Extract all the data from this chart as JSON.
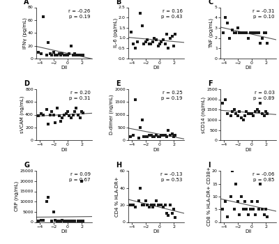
{
  "panels": [
    {
      "label": "A",
      "ylabel": "IFNγ (pg/mL)",
      "xlabel": "DII",
      "r": -0.26,
      "p": 0.19,
      "xlim": [
        -4.5,
        3.5
      ],
      "ylim": [
        0,
        80
      ],
      "yticks": [
        0,
        20,
        40,
        60,
        80
      ],
      "x": [
        -4.2,
        -3.8,
        -3.5,
        -3.0,
        -2.8,
        -2.5,
        -2.3,
        -2.0,
        -1.8,
        -1.5,
        -1.2,
        -1.0,
        -0.8,
        -0.5,
        -0.2,
        0.0,
        0.2,
        0.5,
        0.8,
        1.0,
        1.2,
        1.5,
        1.8,
        2.0,
        2.2
      ],
      "y": [
        10,
        8,
        65,
        5,
        25,
        8,
        5,
        10,
        5,
        5,
        8,
        5,
        7,
        5,
        5,
        5,
        8,
        20,
        5,
        8,
        5,
        5,
        5,
        5,
        5
      ]
    },
    {
      "label": "B",
      "ylabel": "IL-6 (pg/mL)",
      "xlabel": "DII",
      "r": 0.16,
      "p": 0.43,
      "xlim": [
        -4.5,
        3.5
      ],
      "ylim": [
        0.0,
        2.5
      ],
      "yticks": [
        0.0,
        0.5,
        1.0,
        1.5,
        2.0,
        2.5
      ],
      "x": [
        -4.1,
        -3.8,
        -3.5,
        -3.2,
        -2.8,
        -2.5,
        -2.3,
        -2.0,
        -1.8,
        -1.5,
        -1.3,
        -1.0,
        -0.8,
        -0.5,
        -0.2,
        0.0,
        0.2,
        0.5,
        0.8,
        1.0,
        1.2,
        1.5,
        1.8,
        2.0,
        2.2
      ],
      "y": [
        1.3,
        0.7,
        0.5,
        0.8,
        2.2,
        1.6,
        0.7,
        0.8,
        0.9,
        0.7,
        0.7,
        0.8,
        1.0,
        0.9,
        0.6,
        0.7,
        0.8,
        0.9,
        0.7,
        1.2,
        0.5,
        1.0,
        1.1,
        0.6,
        1.2
      ]
    },
    {
      "label": "C",
      "ylabel": "TNF (pg/mL)",
      "xlabel": "DII",
      "r": -0.31,
      "p": 0.1,
      "xlim": [
        -4.5,
        3.5
      ],
      "ylim": [
        0,
        5
      ],
      "yticks": [
        0,
        1,
        2,
        3,
        4,
        5
      ],
      "x": [
        -4.1,
        -3.8,
        -3.5,
        -3.2,
        -2.8,
        -2.5,
        -2.3,
        -2.0,
        -1.8,
        -1.5,
        -1.3,
        -1.0,
        -0.8,
        -0.5,
        -0.2,
        0.0,
        0.2,
        0.5,
        0.8,
        1.0,
        1.2,
        1.5,
        1.8,
        2.0,
        2.2
      ],
      "y": [
        2.5,
        4.0,
        3.5,
        2.0,
        2.8,
        2.5,
        2.5,
        3.0,
        2.5,
        2.5,
        2.5,
        2.5,
        2.5,
        2.0,
        2.5,
        2.5,
        2.5,
        2.5,
        2.5,
        2.5,
        1.5,
        2.0,
        2.5,
        2.5,
        1.5
      ]
    },
    {
      "label": "D",
      "ylabel": "sVCAM (ng/mL)",
      "xlabel": "DII",
      "r": 0.2,
      "p": 0.31,
      "xlim": [
        -4.5,
        3.5
      ],
      "ylim": [
        0,
        800
      ],
      "yticks": [
        0,
        200,
        400,
        600,
        800
      ],
      "x": [
        -4.2,
        -3.8,
        -3.5,
        -3.0,
        -2.8,
        -2.5,
        -2.3,
        -2.0,
        -1.8,
        -1.5,
        -1.2,
        -1.0,
        -0.8,
        -0.5,
        -0.2,
        0.0,
        0.2,
        0.5,
        0.8,
        1.0,
        1.2,
        1.5,
        1.8,
        2.0,
        2.2
      ],
      "y": [
        380,
        420,
        400,
        480,
        250,
        400,
        450,
        400,
        280,
        500,
        380,
        300,
        350,
        400,
        420,
        450,
        380,
        350,
        400,
        450,
        500,
        400,
        350,
        450,
        430
      ]
    },
    {
      "label": "E",
      "ylabel": "D-dimer (ng/mL)",
      "xlabel": "DII",
      "r": 0.25,
      "p": 0.19,
      "xlim": [
        -4.5,
        3.5
      ],
      "ylim": [
        0,
        2000
      ],
      "yticks": [
        0,
        500,
        1000,
        1500,
        2000
      ],
      "x": [
        -4.2,
        -3.8,
        -3.5,
        -3.0,
        -2.8,
        -2.5,
        -2.3,
        -2.0,
        -1.8,
        -1.5,
        -1.2,
        -1.0,
        -0.8,
        -0.5,
        -0.2,
        0.0,
        0.2,
        0.5,
        0.8,
        1.0,
        1.2,
        1.5,
        1.8,
        2.0,
        2.2
      ],
      "y": [
        150,
        200,
        1600,
        100,
        500,
        800,
        150,
        150,
        150,
        200,
        200,
        150,
        150,
        200,
        150,
        150,
        200,
        200,
        200,
        150,
        400,
        200,
        250,
        150,
        200
      ]
    },
    {
      "label": "F",
      "ylabel": "sCD14 (ng/mL)",
      "xlabel": "DII",
      "r": 0.03,
      "p": 0.89,
      "xlim": [
        -4.5,
        3.5
      ],
      "ylim": [
        0,
        2500
      ],
      "yticks": [
        0,
        500,
        1000,
        1500,
        2000,
        2500
      ],
      "x": [
        -4.2,
        -3.8,
        -3.5,
        -3.0,
        -2.8,
        -2.5,
        -2.3,
        -2.0,
        -1.8,
        -1.5,
        -1.2,
        -1.0,
        -0.8,
        -0.5,
        -0.2,
        0.0,
        0.2,
        0.5,
        0.8,
        1.0,
        1.2,
        1.5,
        1.8,
        2.0,
        2.2
      ],
      "y": [
        1800,
        2000,
        1300,
        1200,
        1400,
        1500,
        1300,
        1200,
        1400,
        1100,
        1000,
        1200,
        1400,
        1300,
        1300,
        1300,
        1200,
        1400,
        1500,
        1400,
        1800,
        1300,
        1200,
        1400,
        1300
      ]
    },
    {
      "label": "G",
      "ylabel": "CRP (ng/mL)",
      "xlabel": "DII",
      "r": 0.09,
      "p": 0.67,
      "xlim": [
        -4.5,
        3.5
      ],
      "ylim": [
        0,
        25000
      ],
      "yticks": [
        0,
        5000,
        10000,
        15000,
        20000,
        25000
      ],
      "x": [
        -4.2,
        -3.8,
        -3.5,
        -3.0,
        -2.8,
        -2.3,
        -2.0,
        -1.8,
        -1.5,
        -1.2,
        -1.0,
        -0.8,
        -0.5,
        -0.2,
        0.0,
        0.2,
        0.5,
        0.8,
        1.0,
        1.5,
        1.8,
        2.0,
        2.2
      ],
      "y": [
        500,
        800,
        1000,
        10000,
        12000,
        500,
        5000,
        800,
        500,
        500,
        500,
        1000,
        500,
        500,
        500,
        500,
        500,
        500,
        500,
        500,
        500,
        20000,
        500
      ]
    },
    {
      "label": "H",
      "ylabel": "CD4 % HLA-DR+",
      "xlabel": "DII",
      "r": -0.13,
      "p": 0.53,
      "xlim": [
        -4.5,
        3.5
      ],
      "ylim": [
        0,
        60
      ],
      "yticks": [
        0,
        20,
        40,
        60
      ],
      "x": [
        -4.2,
        -3.8,
        -3.5,
        -3.0,
        -2.8,
        -2.5,
        -2.3,
        -2.0,
        -1.8,
        -1.5,
        -1.2,
        -1.0,
        -0.8,
        -0.5,
        -0.2,
        0.0,
        0.2,
        0.5,
        0.8,
        1.0,
        1.2,
        1.5,
        1.8,
        2.0,
        2.2
      ],
      "y": [
        20,
        20,
        18,
        25,
        40,
        20,
        20,
        25,
        20,
        18,
        20,
        18,
        20,
        25,
        20,
        20,
        20,
        18,
        20,
        10,
        8,
        20,
        10,
        15,
        5
      ]
    },
    {
      "label": "I",
      "ylabel": "CD8 % HLA-DR+ CD38+",
      "xlabel": "DII",
      "r": -0.06,
      "p": 0.85,
      "xlim": [
        -4.5,
        3.5
      ],
      "ylim": [
        0,
        20
      ],
      "yticks": [
        0,
        5,
        10,
        15,
        20
      ],
      "x": [
        -4.2,
        -3.8,
        -3.5,
        -3.0,
        -2.8,
        -2.5,
        -2.3,
        -2.0,
        -1.8,
        -1.5,
        -1.2,
        -1.0,
        -0.8,
        -0.5,
        -0.2,
        0.0,
        0.2,
        0.5,
        0.8,
        1.0,
        1.2,
        1.5,
        1.8,
        2.0,
        2.2
      ],
      "y": [
        5,
        8,
        2,
        10,
        20,
        5,
        15,
        8,
        3,
        10,
        5,
        8,
        5,
        3,
        5,
        8,
        5,
        3,
        8,
        5,
        15,
        5,
        3,
        5,
        2
      ]
    }
  ],
  "marker_color": "#1a1a1a",
  "line_color": "#555555",
  "bg_color": "#ffffff",
  "marker_size": 9,
  "marker_style": "s",
  "font_size": 5.0,
  "label_font_size": 7.0,
  "tick_font_size": 4.5,
  "annot_font_size": 5.0
}
